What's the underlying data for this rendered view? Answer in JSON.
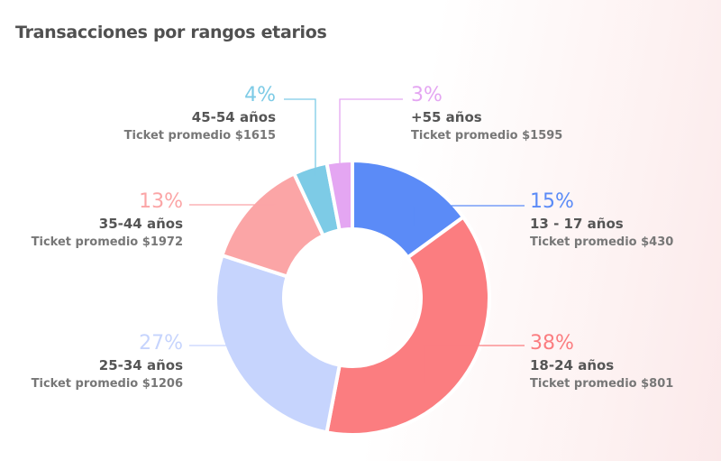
{
  "chart_data": {
    "type": "pie",
    "subtype": "donut",
    "title": "Transacciones por rangos etarios",
    "slices": [
      {
        "label": "13 - 17 años",
        "value": 15,
        "pct_label": "15%",
        "ticket": "Ticket promedio $430",
        "color": "#5b8bf7"
      },
      {
        "label": "18-24 años",
        "value": 38,
        "pct_label": "38%",
        "ticket": "Ticket promedio $801",
        "color": "#fb7d80"
      },
      {
        "label": "25-34 años",
        "value": 27,
        "pct_label": "27%",
        "ticket": "Ticket promedio $1206",
        "color": "#c6d4fd"
      },
      {
        "label": "35-44 años",
        "value": 13,
        "pct_label": "13%",
        "ticket": "Ticket promedio $1972",
        "color": "#fba5a6"
      },
      {
        "label": "45-54 años",
        "value": 4,
        "pct_label": "4%",
        "ticket": "Ticket promedio $1615",
        "color": "#7dcbe6"
      },
      {
        "label": "+55 años",
        "value": 3,
        "pct_label": "3%",
        "ticket": "Ticket promedio $1595",
        "color": "#e4a6f2"
      }
    ],
    "legend": "callouts"
  }
}
